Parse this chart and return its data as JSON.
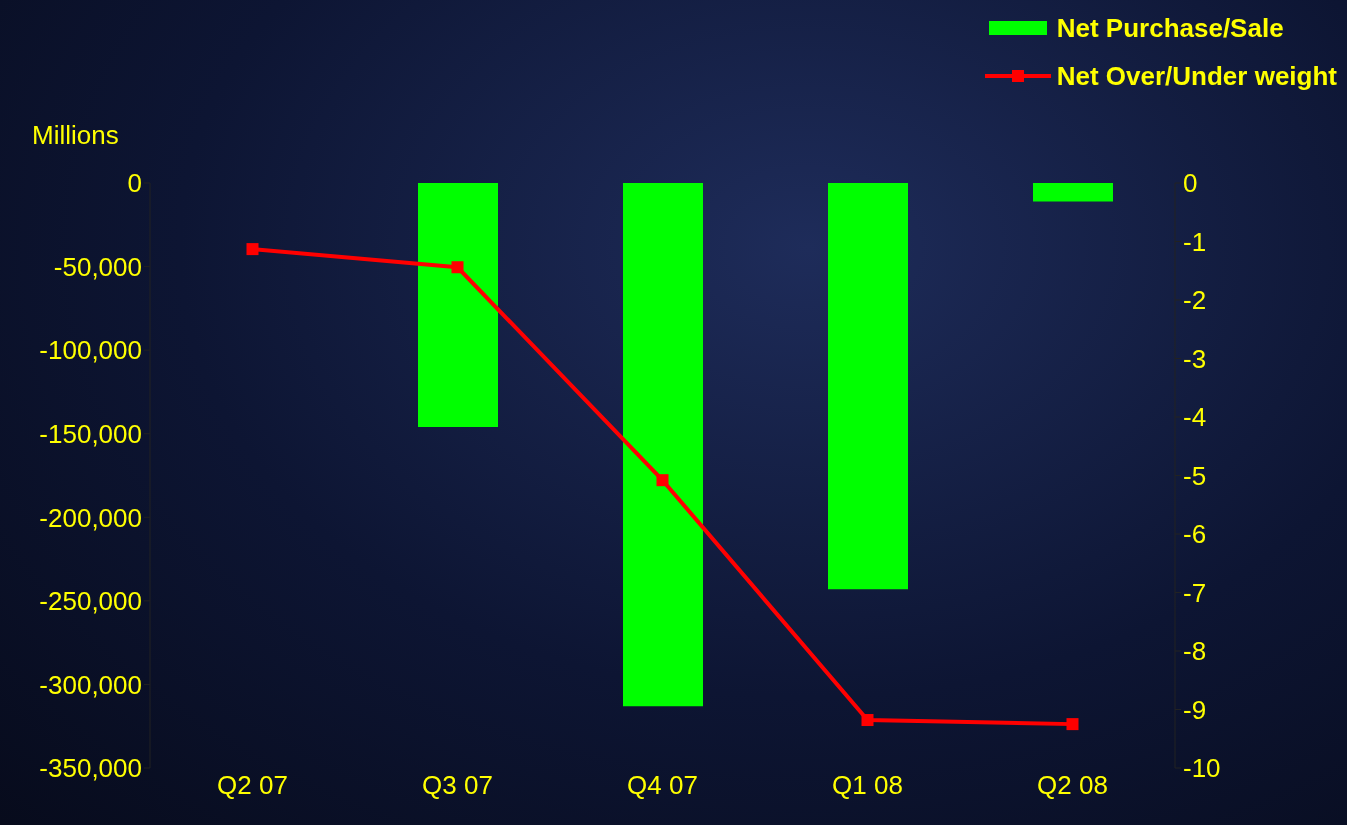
{
  "chart_data": {
    "type": "bar",
    "ylabel": "Millions",
    "categories": [
      "Q2 07",
      "Q3 07",
      "Q4 07",
      "Q1 08",
      "Q2 08"
    ],
    "series": [
      {
        "name": "Net Purchase/Sale",
        "color": "#00ff00",
        "values": [
          null,
          -146000,
          -313000,
          -243000,
          -11000
        ]
      },
      {
        "name": "Net Over/Under weight",
        "type": "line",
        "axis": "y2",
        "color": "#ff0000",
        "values": [
          -1.13,
          -1.44,
          -5.08,
          -9.18,
          -9.25
        ]
      }
    ],
    "ylim": [
      -350000,
      0
    ],
    "yticks": [
      {
        "value": -350000,
        "label": "-350,000"
      },
      {
        "value": -300000,
        "label": "-300,000"
      },
      {
        "value": -250000,
        "label": "-250,000"
      },
      {
        "value": -200000,
        "label": "-200,000"
      },
      {
        "value": -150000,
        "label": "-150,000"
      },
      {
        "value": -100000,
        "label": "-100,000"
      },
      {
        "value": -50000,
        "label": "-50,000"
      },
      0
    ],
    "y2lim": [
      -10,
      0
    ],
    "y2ticks": [
      -10,
      -9,
      -8,
      -7,
      -6,
      -5,
      -4,
      -3,
      -2,
      -1,
      0
    ],
    "marker": "square",
    "legend": "top right",
    "grid": false
  }
}
